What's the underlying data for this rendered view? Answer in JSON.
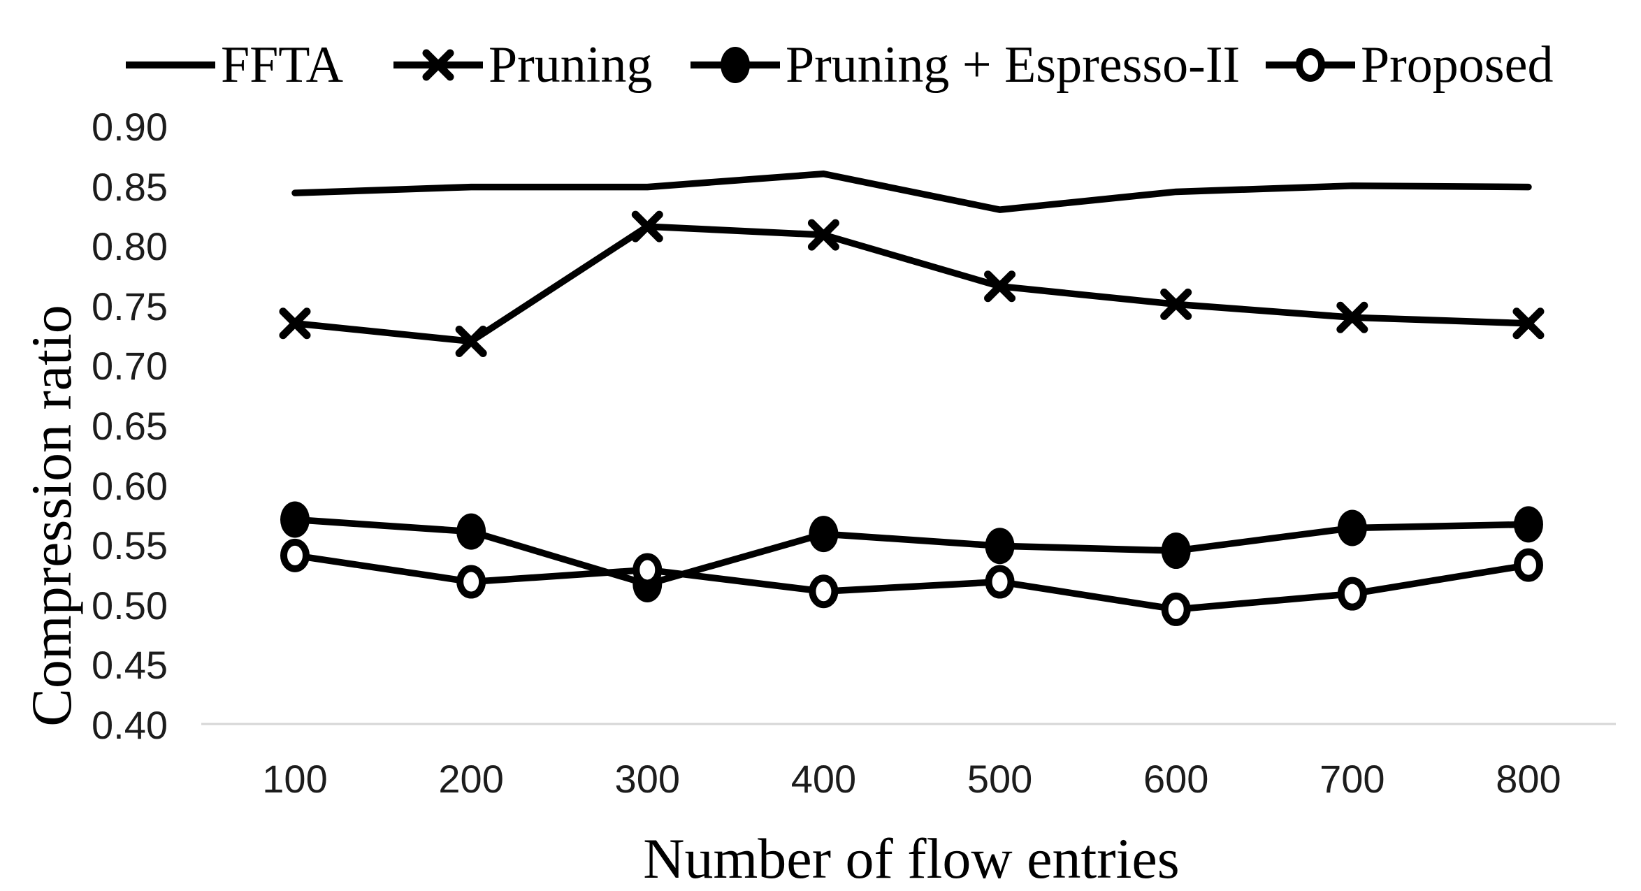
{
  "legend": {
    "items": [
      {
        "label": "FFTA",
        "marker": "none"
      },
      {
        "label": "Pruning",
        "marker": "x"
      },
      {
        "label": "Pruning + Espresso-II",
        "marker": "filled-circle"
      },
      {
        "label": "Proposed",
        "marker": "open-circle"
      }
    ]
  },
  "axes": {
    "xlabel": "Number of flow entries",
    "ylabel": "Compression ratio",
    "y_ticks": [
      "0.90",
      "0.85",
      "0.80",
      "0.75",
      "0.70",
      "0.65",
      "0.60",
      "0.55",
      "0.50",
      "0.45",
      "0.40"
    ],
    "x_ticks": [
      "100",
      "200",
      "300",
      "400",
      "500",
      "600",
      "700",
      "800"
    ]
  },
  "chart_data": {
    "type": "line",
    "title": "",
    "xlabel": "Number of flow entries",
    "ylabel": "Compression ratio",
    "x": [
      100,
      200,
      300,
      400,
      500,
      600,
      700,
      800
    ],
    "series": [
      {
        "name": "FFTA",
        "marker": "none",
        "values": [
          0.845,
          0.85,
          0.85,
          0.861,
          0.831,
          0.846,
          0.851,
          0.85
        ]
      },
      {
        "name": "Pruning",
        "marker": "x",
        "values": [
          0.736,
          0.721,
          0.817,
          0.81,
          0.767,
          0.752,
          0.741,
          0.736
        ]
      },
      {
        "name": "Pruning + Espresso-II",
        "marker": "filled-circle",
        "values": [
          0.572,
          0.562,
          0.518,
          0.56,
          0.55,
          0.546,
          0.565,
          0.568
        ]
      },
      {
        "name": "Proposed",
        "marker": "open-circle",
        "values": [
          0.542,
          0.52,
          0.53,
          0.512,
          0.52,
          0.497,
          0.51,
          0.534
        ]
      }
    ],
    "ylim": [
      0.4,
      0.9
    ],
    "ytick_step": 0.05,
    "grid": "baseline-only",
    "legend_position": "top",
    "colors": {
      "series": "#000000",
      "baseline": "#d6d6d6",
      "background": "#ffffff",
      "text": "#000000"
    }
  }
}
